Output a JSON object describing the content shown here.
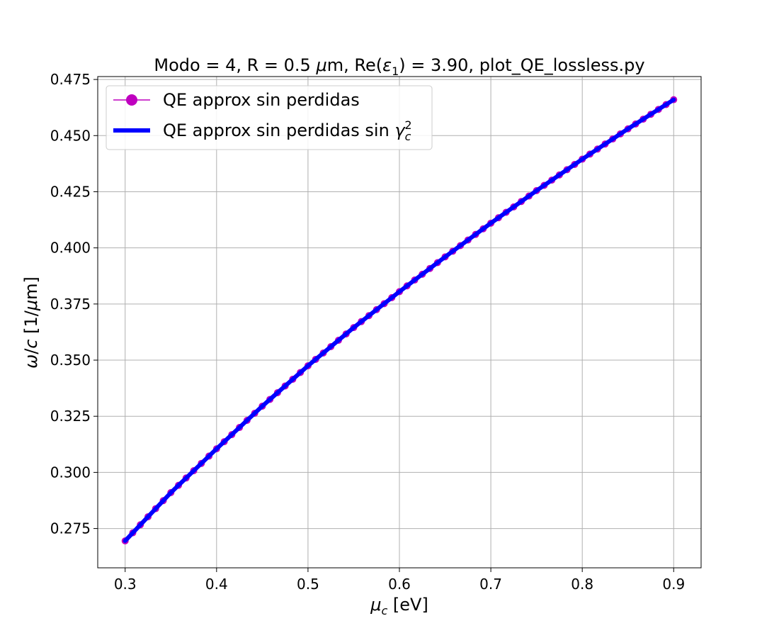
{
  "chart_data": {
    "type": "line",
    "title_parts": {
      "a": "Modo = 4, R = 0.5 ",
      "b": "μ",
      "c": "m, Re(",
      "d": "ε",
      "e": "1",
      "f": ") = 3.90, plot_QE_lossless.py"
    },
    "xlabel_parts": {
      "a": "μ",
      "b": "c",
      "c": " [eV]"
    },
    "ylabel_parts": {
      "a": "ω",
      "b": "/",
      "c": "c",
      "d": " [1/",
      "e": "μ",
      "f": "m]"
    },
    "xlim": [
      0.27,
      0.93
    ],
    "ylim": [
      0.2575,
      0.4763
    ],
    "xticks": [
      0.3,
      0.4,
      0.5,
      0.6,
      0.7,
      0.8,
      0.9
    ],
    "xtick_labels": [
      "0.3",
      "0.4",
      "0.5",
      "0.6",
      "0.7",
      "0.8",
      "0.9"
    ],
    "yticks": [
      0.275,
      0.3,
      0.325,
      0.35,
      0.375,
      0.4,
      0.425,
      0.45,
      0.475
    ],
    "ytick_labels": [
      "0.275",
      "0.300",
      "0.325",
      "0.350",
      "0.375",
      "0.400",
      "0.425",
      "0.450",
      "0.475"
    ],
    "grid": true,
    "legend_position": "upper-left",
    "x": [
      0.3,
      0.35,
      0.4,
      0.45,
      0.5,
      0.55,
      0.6,
      0.65,
      0.7,
      0.75,
      0.8,
      0.85,
      0.9
    ],
    "series": [
      {
        "name": "QE approx sin perdidas",
        "color": "#bf00bf",
        "marker": "circle",
        "values": [
          0.2695,
          0.291,
          0.3105,
          0.3295,
          0.3475,
          0.3645,
          0.3805,
          0.396,
          0.411,
          0.4255,
          0.4395,
          0.453,
          0.466
        ]
      },
      {
        "name_parts": {
          "a": "QE approx sin perdidas sin ",
          "b": "γ",
          "c": "c",
          "d": "2"
        },
        "color": "#0000ff",
        "marker": "none",
        "values": [
          0.2695,
          0.291,
          0.3105,
          0.3295,
          0.3475,
          0.3645,
          0.3805,
          0.396,
          0.411,
          0.4255,
          0.4395,
          0.453,
          0.466
        ]
      }
    ]
  }
}
